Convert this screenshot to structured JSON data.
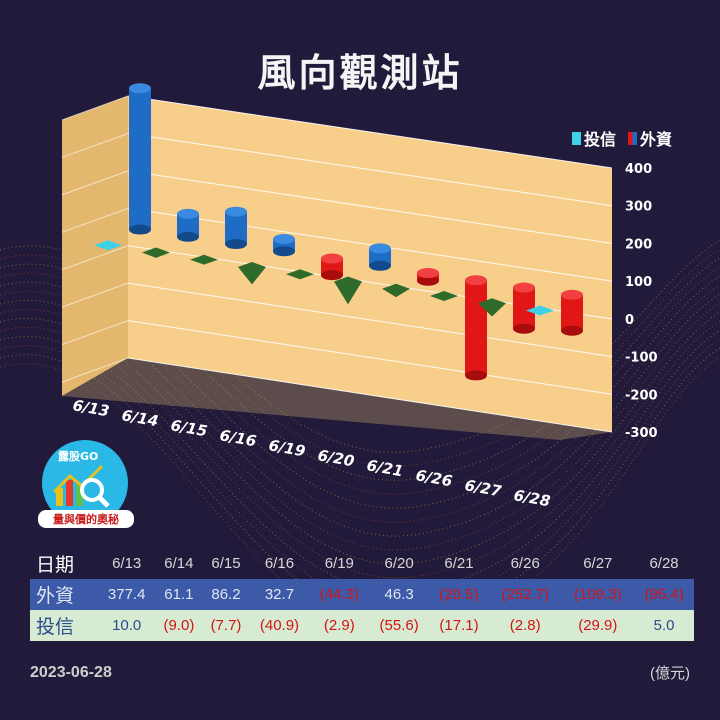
{
  "title": "風向觀測站",
  "brand": "露股GO",
  "brand_tagline": "量與價的奧秘",
  "date": "2023-06-28",
  "unit": "(億元)",
  "colors": {
    "foreign": "#e11616",
    "foreign_alt": "#1e6cc6",
    "trust": "#3dd0e6",
    "trust_neg": "#2e6a2a",
    "wall": "#f8cf8a",
    "pos_bar": "#1e6cc6"
  },
  "table": {
    "header_label": "日期",
    "row_foreign_label": "外資",
    "row_trust_label": "投信",
    "dates": [
      "6/13",
      "6/14",
      "6/15",
      "6/16",
      "6/19",
      "6/20",
      "6/21",
      "6/26",
      "6/27",
      "6/28"
    ],
    "foreign": [
      "377.4",
      "61.1",
      "86.2",
      "32.7",
      "(44.3)",
      "46.3",
      "(20.5)",
      "(252.7)",
      "(109.3)",
      "(95.4)"
    ],
    "trust": [
      "10.0",
      "(9.0)",
      "(7.7)",
      "(40.9)",
      "(2.9)",
      "(55.6)",
      "(17.1)",
      "(2.8)",
      "(29.9)",
      "5.0"
    ]
  },
  "chart_data": {
    "type": "bar",
    "title": "風向觀測站",
    "categories": [
      "6/13",
      "6/14",
      "6/15",
      "6/16",
      "6/19",
      "6/20",
      "6/21",
      "6/26",
      "6/27",
      "6/28"
    ],
    "series": [
      {
        "name": "投信",
        "values": [
          10.0,
          -9.0,
          -7.7,
          -40.9,
          -2.9,
          -55.6,
          -17.1,
          -2.8,
          -29.9,
          5.0
        ]
      },
      {
        "name": "外資",
        "values": [
          377.4,
          61.1,
          86.2,
          32.7,
          -44.3,
          46.3,
          -20.5,
          -252.7,
          -109.3,
          -95.4
        ]
      }
    ],
    "y_ticks": [
      "400",
      "300",
      "200",
      "100",
      "0",
      "-100",
      "-200",
      "-300"
    ],
    "ylim": [
      -300,
      400
    ],
    "legend_position": "top-right",
    "grid": true
  }
}
